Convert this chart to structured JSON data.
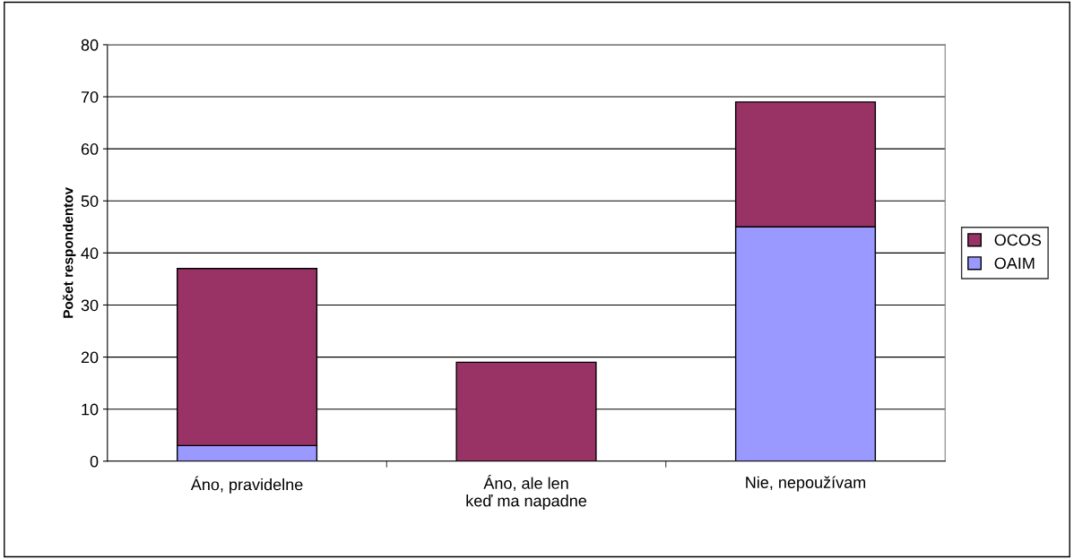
{
  "chart_data": {
    "type": "bar",
    "stacked": true,
    "ylabel": "Počet respondentov",
    "categories": [
      "Áno, pravidelne",
      "Áno, ale len\nkeď ma napadne",
      "Nie, nepoužívam"
    ],
    "series": [
      {
        "name": "OAIM",
        "color": "#9999ff",
        "values": [
          3,
          0,
          45
        ]
      },
      {
        "name": "OCOS",
        "color": "#993366",
        "values": [
          34,
          19,
          24
        ]
      }
    ],
    "ylim": [
      0,
      80
    ],
    "yticks": [
      0,
      10,
      20,
      30,
      40,
      50,
      60,
      70,
      80
    ],
    "grid": "y",
    "legend": "right"
  }
}
